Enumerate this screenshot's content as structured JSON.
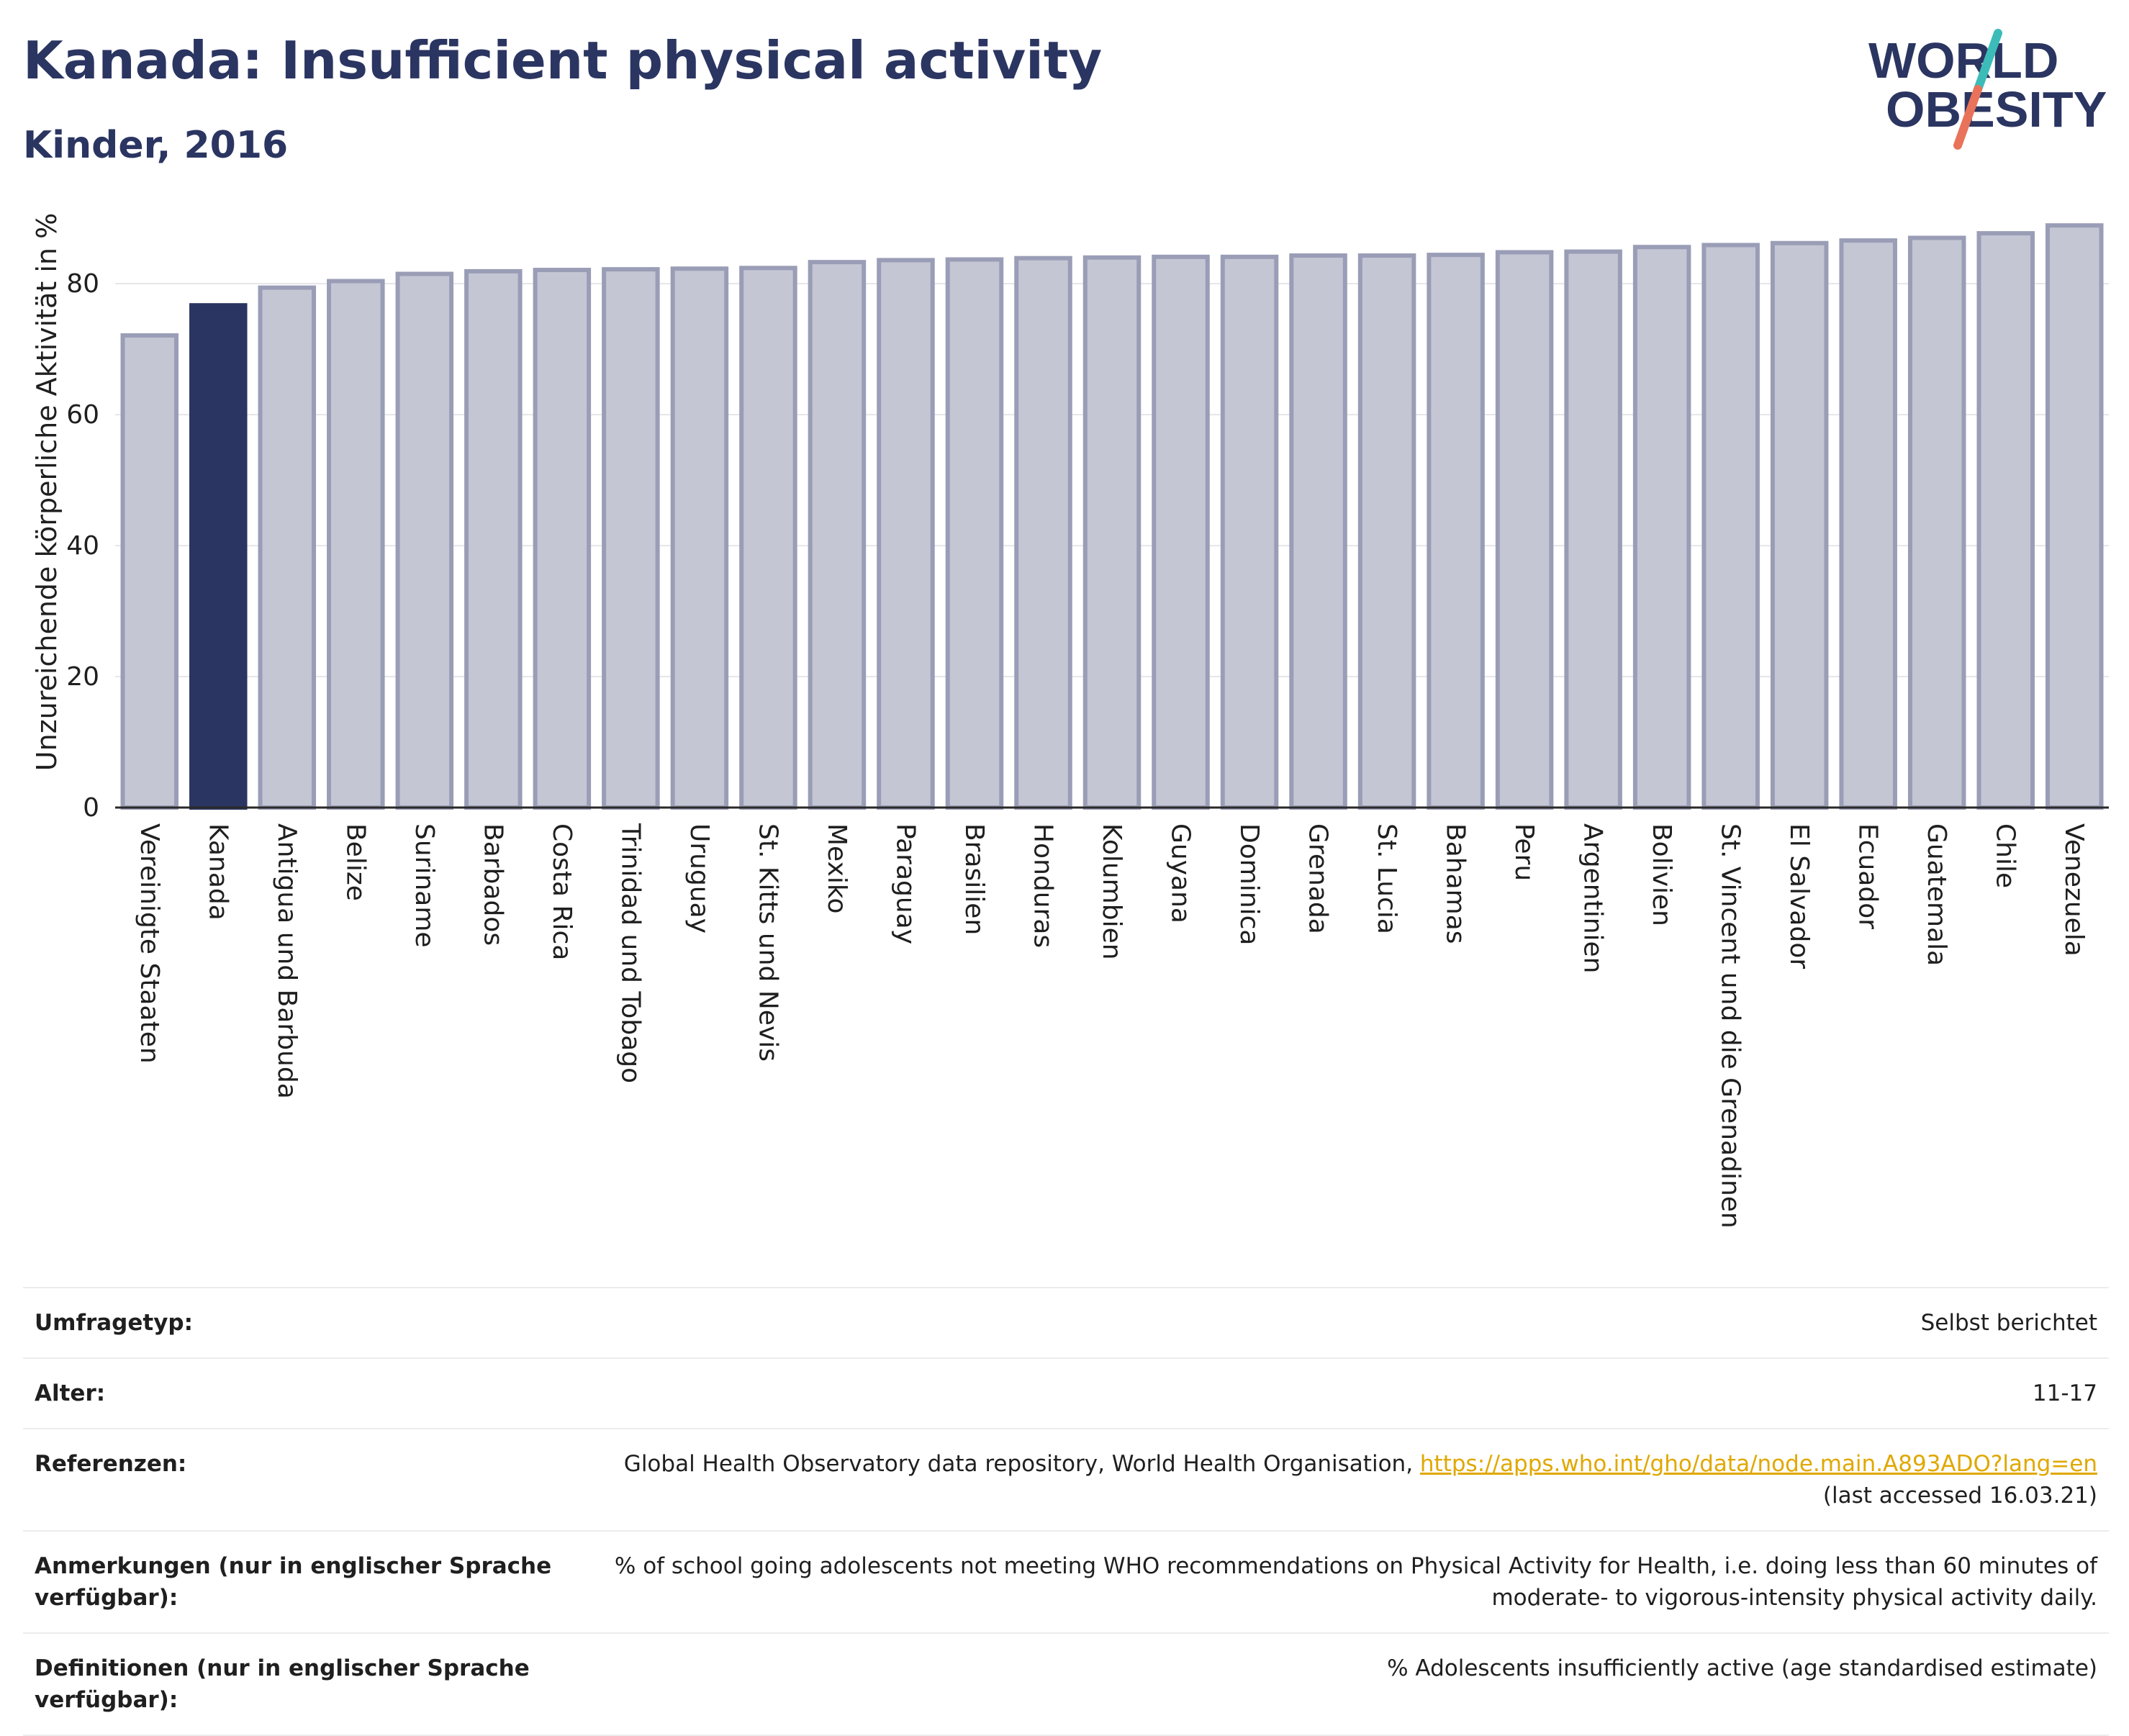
{
  "header": {
    "title": "Kanada: Insufficient physical activity",
    "subtitle": "Kinder, 2016",
    "logo_line1": "WORLD",
    "logo_line2": "OBESITY"
  },
  "colors": {
    "highlight": "#2b3561",
    "bar_fill": "#c4c6d4",
    "bar_stroke": "#9a9db6",
    "title": "#2b3561",
    "link": "#e0a800",
    "logo_teal": "#3bbcb9",
    "logo_coral": "#e8735a"
  },
  "chart_data": {
    "type": "bar",
    "title": "",
    "xlabel": "",
    "ylabel": "Unzureichende körperliche Aktivität in %",
    "ylim": [
      0,
      92
    ],
    "yticks": [
      0,
      20,
      40,
      60,
      80
    ],
    "grid": true,
    "highlight": "Kanada",
    "categories": [
      "Vereinigte Staaten",
      "Kanada",
      "Antigua und Barbuda",
      "Belize",
      "Suriname",
      "Barbados",
      "Costa Rica",
      "Trinidad und Tobago",
      "Uruguay",
      "St. Kitts und Nevis",
      "Mexiko",
      "Paraguay",
      "Brasilien",
      "Honduras",
      "Kolumbien",
      "Guyana",
      "Dominica",
      "Grenada",
      "St. Lucia",
      "Bahamas",
      "Peru",
      "Argentinien",
      "Bolivien",
      "St. Vincent und die Grenadinen",
      "El Salvador",
      "Ecuador",
      "Guatemala",
      "Chile",
      "Venezuela"
    ],
    "values": [
      72.1,
      76.7,
      79.4,
      80.4,
      81.5,
      81.9,
      82.1,
      82.2,
      82.3,
      82.4,
      83.3,
      83.6,
      83.7,
      83.9,
      84.0,
      84.1,
      84.1,
      84.3,
      84.3,
      84.4,
      84.8,
      84.9,
      85.6,
      85.9,
      86.2,
      86.6,
      87.0,
      87.7,
      88.9
    ]
  },
  "meta": {
    "rows": [
      {
        "label": "Umfragetyp:",
        "value": "Selbst berichtet"
      },
      {
        "label": "Alter:",
        "value": "11-17"
      },
      {
        "label": "Referenzen:",
        "value": "Global Health Observatory data repository, World Health Organisation,",
        "link": "https://apps.who.int/gho/data/node.main.A893ADO?lang=en",
        "value2": "(last accessed 16.03.21)"
      },
      {
        "label": "Anmerkungen (nur in englischer Sprache verfügbar):",
        "value": "% of school going adolescents not meeting WHO recommendations on Physical Activity for Health, i.e. doing less than 60 minutes of moderate- to vigorous-intensity physical activity daily."
      },
      {
        "label": "Definitionen (nur in englischer Sprache verfügbar):",
        "value": "% Adolescents insufficiently active (age standardised estimate)"
      }
    ]
  }
}
